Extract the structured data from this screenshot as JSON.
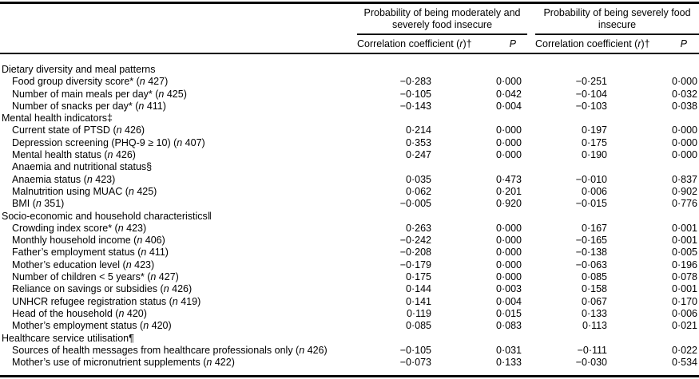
{
  "table": {
    "col_groups": [
      {
        "title": "Probability of being moderately and severely food insecure"
      },
      {
        "title": "Probability of being severely food insecure"
      }
    ],
    "sub_header": {
      "correlation_pre": "Correlation coefficient (",
      "correlation_symbol": "r",
      "correlation_post": ")†",
      "p_label": "P"
    },
    "n_symbol": "n",
    "rows": [
      {
        "label": "Dietary diversity and meal patterns",
        "section": true,
        "indent": false,
        "n": null,
        "values": null
      },
      {
        "label": "Food group diversity score*",
        "section": false,
        "indent": true,
        "n": "427",
        "values": [
          "−0·283",
          "0·000",
          "−0·251",
          "0·000"
        ]
      },
      {
        "label": "Number of main meals per day*",
        "section": false,
        "indent": true,
        "n": "425",
        "values": [
          "−0·105",
          "0·042",
          "−0·104",
          "0·032"
        ]
      },
      {
        "label": "Number of snacks per day*",
        "section": false,
        "indent": true,
        "n": "411",
        "values": [
          "−0·143",
          "0·004",
          "−0·103",
          "0·038"
        ]
      },
      {
        "label": "Mental health indicators‡",
        "section": true,
        "indent": false,
        "n": null,
        "values": null
      },
      {
        "label": "Current state of PTSD",
        "section": false,
        "indent": true,
        "n": "426",
        "values": [
          "0·214",
          "0·000",
          "0·197",
          "0·000"
        ]
      },
      {
        "label": "Depression screening (PHQ-9 ≥ 10)",
        "section": false,
        "indent": true,
        "n": "407",
        "values": [
          "0·353",
          "0·000",
          "0·175",
          "0·000"
        ]
      },
      {
        "label": "Mental health status",
        "section": false,
        "indent": true,
        "n": "426",
        "values": [
          "0·247",
          "0·000",
          "0·190",
          "0·000"
        ]
      },
      {
        "label": "Anaemia and nutritional status§",
        "section": true,
        "indent": true,
        "n": null,
        "values": null
      },
      {
        "label": "Anaemia status",
        "section": false,
        "indent": true,
        "n": "423",
        "values": [
          "0·035",
          "0·473",
          "−0·010",
          "0·837"
        ]
      },
      {
        "label": "Malnutrition using MUAC",
        "section": false,
        "indent": true,
        "n": "425",
        "values": [
          "0·062",
          "0·201",
          "0·006",
          "0·902"
        ]
      },
      {
        "label": "BMI",
        "section": false,
        "indent": true,
        "n": "351",
        "values": [
          "−0·005",
          "0·920",
          "−0·015",
          "0·776"
        ]
      },
      {
        "label": "Socio-economic and household characteristics‖",
        "section": true,
        "indent": false,
        "n": null,
        "values": null
      },
      {
        "label": "Crowding index score*",
        "section": false,
        "indent": true,
        "n": "423",
        "values": [
          "0·263",
          "0·000",
          "0·167",
          "0·001"
        ]
      },
      {
        "label": "Monthly household income",
        "section": false,
        "indent": true,
        "n": "406",
        "values": [
          "−0·242",
          "0·000",
          "−0·165",
          "0·001"
        ]
      },
      {
        "label": "Father’s employment status",
        "section": false,
        "indent": true,
        "n": "411",
        "values": [
          "−0·208",
          "0·000",
          "−0·138",
          "0·005"
        ]
      },
      {
        "label": "Mother’s education level",
        "section": false,
        "indent": true,
        "n": "423",
        "values": [
          "−0·179",
          "0·000",
          "−0·063",
          "0·196"
        ]
      },
      {
        "label": "Number of children < 5 years*",
        "section": false,
        "indent": true,
        "n": "427",
        "values": [
          "0·175",
          "0·000",
          "0·085",
          "0·078"
        ]
      },
      {
        "label": "Reliance on savings or subsidies",
        "section": false,
        "indent": true,
        "n": "426",
        "values": [
          "0·144",
          "0·003",
          "0·158",
          "0·001"
        ]
      },
      {
        "label": "UNHCR refugee registration status",
        "section": false,
        "indent": true,
        "n": "419",
        "values": [
          "0·141",
          "0·004",
          "0·067",
          "0·170"
        ]
      },
      {
        "label": "Head of the household",
        "section": false,
        "indent": true,
        "n": "420",
        "values": [
          "0·119",
          "0·015",
          "0·133",
          "0·006"
        ]
      },
      {
        "label": "Mother’s employment status",
        "section": false,
        "indent": true,
        "n": "420",
        "values": [
          "0·085",
          "0·083",
          "0·113",
          "0·021"
        ]
      },
      {
        "label": "Healthcare service utilisation¶",
        "section": true,
        "indent": false,
        "n": null,
        "values": null
      },
      {
        "label": "Sources of health messages from healthcare professionals only",
        "section": false,
        "indent": true,
        "n": "426",
        "values": [
          "−0·105",
          "0·031",
          "−0·111",
          "0·022"
        ]
      },
      {
        "label": "Mother’s use of micronutrient supplements",
        "section": false,
        "indent": true,
        "n": "422",
        "values": [
          "−0·073",
          "0·133",
          "−0·030",
          "0·534"
        ]
      }
    ]
  }
}
